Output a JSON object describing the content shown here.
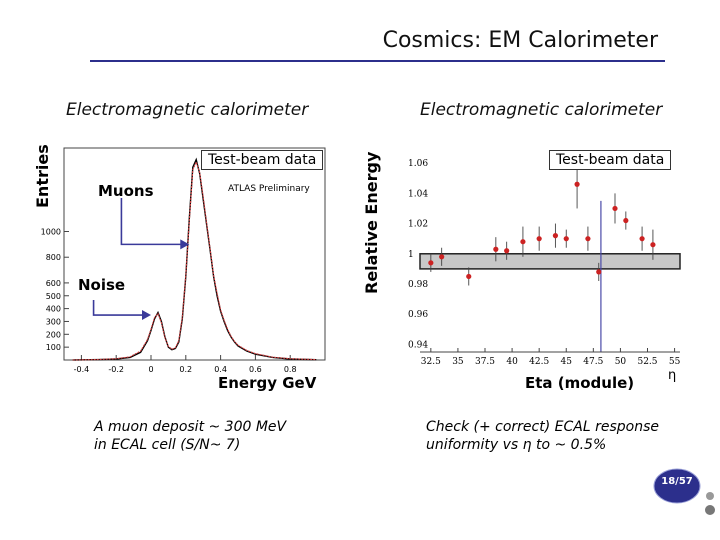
{
  "slide": {
    "title": "Cosmics: EM Calorimeter",
    "page": "18/57",
    "accent_color": "#2c2f8c"
  },
  "left_panel": {
    "subtitle": "Electromagnetic calorimeter",
    "caption": "A muon deposit ~ 300 MeV\nin ECAL cell (S/N~ 7)",
    "callouts": {
      "muons": "Muons",
      "noise": "Noise"
    },
    "legend_box": "Test-beam data",
    "annotation": "ATLAS Preliminary"
  },
  "right_panel": {
    "subtitle": "Electromagnetic calorimeter",
    "caption": "Check (+ correct) ECAL response\nuniformity vs η to ~ 0.5%",
    "legend_box": "Test-beam data",
    "eta_symbol": "η"
  },
  "chart_data": [
    {
      "type": "line",
      "title": "",
      "xlabel": "Energy GeV",
      "ylabel": "Entries",
      "xlim": [
        -0.5,
        1.0
      ],
      "ylim": [
        0,
        1650
      ],
      "x_ticks": [
        -0.4,
        -0.2,
        0,
        0.2,
        0.4,
        0.6,
        0.8
      ],
      "x_tick_labels": [
        "-0.4",
        "-0.2",
        "0",
        "0.2",
        "0.4",
        "0.6",
        "0.8"
      ],
      "y_ticks": [
        100,
        200,
        300,
        400,
        500,
        600,
        800,
        1000
      ],
      "y_tick_labels": [
        "100",
        "200",
        "300",
        "400",
        "500",
        "600",
        "800",
        "1000"
      ],
      "series": [
        {
          "color": "#000000",
          "x": [
            -0.45,
            -0.3,
            -0.2,
            -0.12,
            -0.06,
            -0.02,
            0.0,
            0.02,
            0.04,
            0.06,
            0.08,
            0.1,
            0.12,
            0.14,
            0.16,
            0.18,
            0.2,
            0.22,
            0.24,
            0.26,
            0.28,
            0.3,
            0.32,
            0.34,
            0.36,
            0.38,
            0.4,
            0.42,
            0.44,
            0.46,
            0.48,
            0.5,
            0.55,
            0.6,
            0.7,
            0.8,
            0.95
          ],
          "y": [
            0,
            3,
            8,
            20,
            60,
            150,
            230,
            320,
            370,
            300,
            180,
            100,
            80,
            90,
            140,
            320,
            650,
            1100,
            1500,
            1560,
            1450,
            1250,
            1050,
            850,
            650,
            500,
            380,
            300,
            230,
            180,
            140,
            110,
            70,
            45,
            20,
            8,
            2
          ]
        },
        {
          "color": "#d44040",
          "x": [
            -0.45,
            -0.3,
            -0.2,
            -0.12,
            -0.06,
            -0.02,
            0.0,
            0.02,
            0.04,
            0.06,
            0.08,
            0.1,
            0.12,
            0.14,
            0.16,
            0.18,
            0.2,
            0.22,
            0.24,
            0.26,
            0.28,
            0.3,
            0.32,
            0.34,
            0.36,
            0.38,
            0.4,
            0.42,
            0.44,
            0.46,
            0.48,
            0.5,
            0.55,
            0.6,
            0.7,
            0.8,
            0.95
          ],
          "y": [
            0,
            4,
            10,
            25,
            70,
            160,
            240,
            330,
            360,
            290,
            175,
            105,
            85,
            95,
            150,
            330,
            660,
            1080,
            1480,
            1540,
            1460,
            1270,
            1060,
            860,
            660,
            520,
            390,
            310,
            240,
            185,
            145,
            115,
            75,
            50,
            22,
            10,
            3
          ]
        }
      ]
    },
    {
      "type": "scatter",
      "title": "",
      "xlabel": "Eta (module)",
      "ylabel": "Relative Energy",
      "xlim": [
        31.5,
        55.5
      ],
      "ylim": [
        0.935,
        1.07
      ],
      "x_ticks": [
        32.5,
        35,
        37.5,
        40,
        42.5,
        45,
        47.5,
        50,
        52.5,
        55
      ],
      "x_tick_labels": [
        "32.5",
        "35",
        "37.5",
        "40",
        "42.5",
        "45",
        "47.5",
        "50",
        "52.5",
        "55"
      ],
      "y_ticks": [
        0.94,
        0.96,
        0.98,
        1,
        1.02,
        1.04,
        1.06
      ],
      "y_tick_labels": [
        "0.94",
        "0.96",
        "0.98",
        "1",
        "1.02",
        "1.04",
        "1.06"
      ],
      "band": [
        0.99,
        1.0
      ],
      "vertical_marker_x": 48.2,
      "points": [
        {
          "x": 32.5,
          "y": 0.994,
          "err": 0.006
        },
        {
          "x": 33.5,
          "y": 0.998,
          "err": 0.006
        },
        {
          "x": 36.0,
          "y": 0.985,
          "err": 0.006
        },
        {
          "x": 38.5,
          "y": 1.003,
          "err": 0.008
        },
        {
          "x": 39.5,
          "y": 1.002,
          "err": 0.006
        },
        {
          "x": 41.0,
          "y": 1.008,
          "err": 0.01
        },
        {
          "x": 42.5,
          "y": 1.01,
          "err": 0.008
        },
        {
          "x": 44.0,
          "y": 1.012,
          "err": 0.008
        },
        {
          "x": 45.0,
          "y": 1.01,
          "err": 0.006
        },
        {
          "x": 46.0,
          "y": 1.046,
          "err": 0.016
        },
        {
          "x": 47.0,
          "y": 1.01,
          "err": 0.008
        },
        {
          "x": 48.0,
          "y": 0.988,
          "err": 0.006
        },
        {
          "x": 49.5,
          "y": 1.03,
          "err": 0.01
        },
        {
          "x": 50.5,
          "y": 1.022,
          "err": 0.006
        },
        {
          "x": 52.0,
          "y": 1.01,
          "err": 0.008
        },
        {
          "x": 53.0,
          "y": 1.006,
          "err": 0.01
        }
      ]
    }
  ]
}
